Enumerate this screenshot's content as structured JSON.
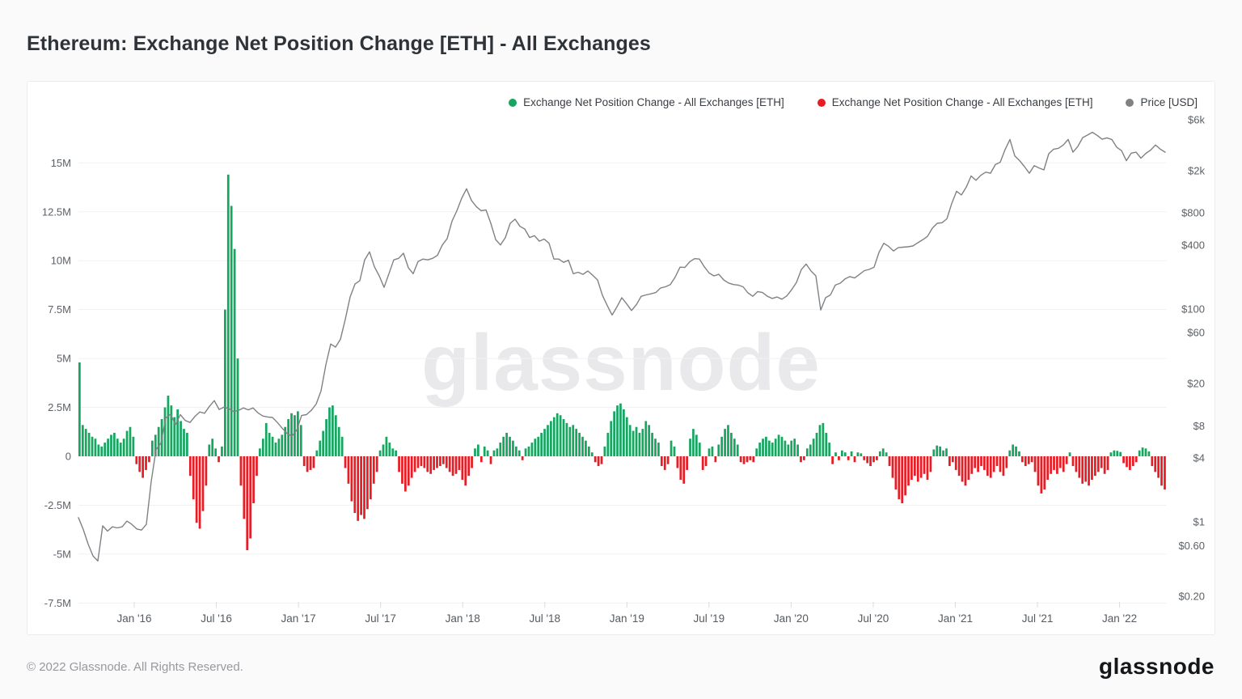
{
  "page": {
    "title": "Ethereum: Exchange Net Position Change [ETH] - All Exchanges",
    "watermark": "glassnode"
  },
  "legend": {
    "items": [
      {
        "label": "Exchange Net Position Change - All Exchanges [ETH]",
        "color": "#16A660",
        "marker": "dot"
      },
      {
        "label": "Exchange Net Position Change - All Exchanges [ETH]",
        "color": "#E71D25",
        "marker": "dot"
      },
      {
        "label": "Price [USD]",
        "color": "#7F8285",
        "marker": "dot"
      }
    ]
  },
  "footer": {
    "copyright": "© 2022 Glassnode. All Rights Reserved.",
    "logo": "glassnode"
  },
  "chart_data": {
    "type": "composite",
    "title": "Ethereum: Exchange Net Position Change [ETH] - All Exchanges",
    "grid": "horizontal",
    "legend_position": "top-right",
    "x_ticks": [
      "Jan '16",
      "Jul '16",
      "Jan '17",
      "Jul '17",
      "Jan '18",
      "Jul '18",
      "Jan '19",
      "Jul '19",
      "Jan '20",
      "Jul '20",
      "Jan '21",
      "Jul '21",
      "Jan '22"
    ],
    "x_range": [
      "Aug 2015",
      "May 2022"
    ],
    "y_left": {
      "title": "Exchange Net Position Change [ETH]",
      "unit": "million ETH",
      "ticks": [
        15,
        12.5,
        10,
        7.5,
        5,
        2.5,
        0,
        -2.5,
        -5,
        -7.5
      ],
      "tick_labels": [
        "15M",
        "12.5M",
        "10M",
        "7.5M",
        "5M",
        "2.5M",
        "0",
        "-2.5M",
        "-5M",
        "-7.5M"
      ]
    },
    "y_right": {
      "title": "Price [USD]",
      "scale": "log",
      "ticks": [
        6000,
        2000,
        800,
        400,
        100,
        60,
        20,
        8,
        4,
        1,
        0.6,
        0.2
      ],
      "tick_labels": [
        "$6k",
        "$2k",
        "$800",
        "$400",
        "$100",
        "$60",
        "$20",
        "$8",
        "$4",
        "$1",
        "$0.60",
        "$0.20"
      ]
    },
    "series": [
      {
        "name": "Exchange Net Position Change - All Exchanges [ETH]",
        "type": "bar",
        "axis": "left",
        "unit": "million ETH",
        "interval": "weekly, Aug 2015 to May 2022, evenly spaced",
        "color_positive": "#16A660",
        "color_negative": "#E71D25",
        "values": [
          4.8,
          1.6,
          1.4,
          1.2,
          1.0,
          0.9,
          0.6,
          0.5,
          0.7,
          0.9,
          1.1,
          1.2,
          0.9,
          0.7,
          0.9,
          1.3,
          1.5,
          1.0,
          -0.4,
          -0.8,
          -1.1,
          -0.7,
          -0.3,
          0.8,
          1.1,
          1.5,
          1.9,
          2.5,
          3.1,
          2.6,
          2.0,
          2.4,
          1.8,
          1.4,
          1.2,
          -1.0,
          -2.2,
          -3.4,
          -3.7,
          -2.8,
          -1.5,
          0.6,
          0.9,
          0.4,
          -0.3,
          0.5,
          7.5,
          14.4,
          12.8,
          10.6,
          5.0,
          -1.5,
          -3.2,
          -4.8,
          -4.2,
          -2.4,
          -1.0,
          0.4,
          0.9,
          1.7,
          1.2,
          1.0,
          0.7,
          0.9,
          1.1,
          1.5,
          1.9,
          2.2,
          2.1,
          2.3,
          1.6,
          -0.5,
          -0.8,
          -0.7,
          -0.6,
          0.3,
          0.8,
          1.3,
          1.9,
          2.5,
          2.6,
          2.1,
          1.5,
          1.0,
          -0.6,
          -1.4,
          -2.3,
          -2.9,
          -3.3,
          -3.0,
          -3.2,
          -2.7,
          -2.2,
          -1.4,
          -0.8,
          0.3,
          0.6,
          1.0,
          0.7,
          0.4,
          0.3,
          -0.8,
          -1.4,
          -1.8,
          -1.5,
          -1.1,
          -0.8,
          -0.6,
          -0.5,
          -0.6,
          -0.8,
          -0.9,
          -0.7,
          -0.6,
          -0.5,
          -0.4,
          -0.6,
          -0.8,
          -1.0,
          -0.9,
          -0.7,
          -1.2,
          -1.5,
          -1.0,
          -0.6,
          0.4,
          0.6,
          -0.3,
          0.5,
          0.3,
          -0.4,
          0.3,
          0.4,
          0.7,
          1.0,
          1.2,
          1.0,
          0.8,
          0.5,
          0.3,
          -0.2,
          0.4,
          0.5,
          0.7,
          0.9,
          1.0,
          1.2,
          1.4,
          1.6,
          1.8,
          2.0,
          2.2,
          2.1,
          1.9,
          1.7,
          1.5,
          1.6,
          1.4,
          1.2,
          1.0,
          0.8,
          0.5,
          0.2,
          -0.3,
          -0.5,
          -0.4,
          0.5,
          1.2,
          1.8,
          2.3,
          2.6,
          2.7,
          2.4,
          2.0,
          1.6,
          1.3,
          1.5,
          1.2,
          1.4,
          1.8,
          1.6,
          1.2,
          0.9,
          0.7,
          -0.5,
          -0.7,
          -0.4,
          0.8,
          0.5,
          -0.6,
          -1.2,
          -1.4,
          -0.7,
          0.9,
          1.4,
          1.1,
          0.7,
          -0.7,
          -0.5,
          0.4,
          0.5,
          -0.3,
          0.6,
          1.0,
          1.4,
          1.6,
          1.2,
          0.9,
          0.6,
          -0.3,
          -0.4,
          -0.3,
          -0.2,
          -0.3,
          0.4,
          0.7,
          0.9,
          1.0,
          0.8,
          0.7,
          0.9,
          1.1,
          1.0,
          0.8,
          0.6,
          0.8,
          0.9,
          0.6,
          -0.3,
          -0.2,
          0.4,
          0.6,
          0.9,
          1.2,
          1.6,
          1.7,
          1.2,
          0.7,
          -0.4,
          0.2,
          -0.2,
          0.3,
          0.2,
          -0.2,
          0.25,
          -0.3,
          0.2,
          0.15,
          -0.2,
          -0.35,
          -0.5,
          -0.3,
          -0.2,
          0.25,
          0.4,
          0.2,
          -0.5,
          -1.1,
          -1.7,
          -2.2,
          -2.4,
          -2.0,
          -1.5,
          -1.2,
          -1.0,
          -1.3,
          -1.1,
          -0.9,
          -1.2,
          -0.8,
          0.35,
          0.55,
          0.5,
          0.3,
          0.4,
          -0.5,
          -0.3,
          -0.7,
          -1.0,
          -1.3,
          -1.5,
          -1.2,
          -0.9,
          -0.6,
          -0.8,
          -0.5,
          -0.7,
          -1.0,
          -1.1,
          -0.8,
          -0.5,
          -0.8,
          -1.0,
          -0.6,
          0.3,
          0.6,
          0.5,
          0.25,
          -0.3,
          -0.5,
          -0.4,
          -0.3,
          -0.8,
          -1.5,
          -1.9,
          -1.7,
          -1.2,
          -0.9,
          -0.7,
          -0.9,
          -0.6,
          -0.8,
          -0.4,
          0.2,
          -0.5,
          -0.8,
          -1.1,
          -1.4,
          -1.3,
          -1.5,
          -1.2,
          -1.0,
          -0.8,
          -0.6,
          -0.9,
          -0.7,
          0.2,
          0.3,
          0.28,
          0.22,
          -0.35,
          -0.55,
          -0.7,
          -0.5,
          -0.3,
          0.3,
          0.45,
          0.4,
          0.25,
          -0.5,
          -0.8,
          -1.1,
          -1.5,
          -1.7
        ]
      },
      {
        "name": "Price [USD]",
        "type": "line",
        "axis": "right",
        "unit": "USD",
        "interval": "evenly spaced samples, Aug 2015 to May 2022",
        "color": "#7F8285",
        "values": [
          1.1,
          0.85,
          0.62,
          0.48,
          0.43,
          0.92,
          0.82,
          0.9,
          0.88,
          0.9,
          1.02,
          0.95,
          0.86,
          0.84,
          0.95,
          2.4,
          4.8,
          5.5,
          9.5,
          10.3,
          8.2,
          10.2,
          9,
          8.6,
          9.8,
          10.8,
          10.5,
          12.2,
          13.8,
          11.4,
          12,
          11.6,
          10.9,
          11.2,
          11.8,
          11.3,
          11.8,
          10.6,
          9.9,
          9.7,
          9.6,
          8.6,
          7.6,
          6.8,
          6.4,
          7.3,
          10,
          10.2,
          11.2,
          12.8,
          17,
          30,
          47,
          44,
          52,
          80,
          130,
          172,
          185,
          290,
          345,
          250,
          205,
          160,
          215,
          290,
          300,
          335,
          245,
          215,
          280,
          295,
          290,
          300,
          320,
          400,
          460,
          670,
          840,
          1100,
          1350,
          1050,
          920,
          840,
          855,
          640,
          450,
          400,
          470,
          640,
          700,
          600,
          565,
          470,
          490,
          435,
          455,
          415,
          295,
          295,
          275,
          288,
          215,
          222,
          212,
          228,
          208,
          188,
          135,
          108,
          88,
          105,
          128,
          112,
          97,
          110,
          132,
          136,
          139,
          143,
          158,
          162,
          170,
          200,
          248,
          246,
          278,
          298,
          295,
          250,
          218,
          205,
          212,
          188,
          176,
          170,
          168,
          162,
          142,
          132,
          146,
          143,
          132,
          126,
          130,
          124,
          133,
          152,
          178,
          235,
          265,
          228,
          205,
          98,
          128,
          136,
          168,
          175,
          192,
          202,
          196,
          212,
          230,
          236,
          248,
          340,
          415,
          388,
          352,
          378,
          382,
          385,
          392,
          420,
          448,
          482,
          575,
          640,
          648,
          705,
          980,
          1280,
          1180,
          1400,
          1780,
          1620,
          1805,
          1935,
          1890,
          2280,
          2400,
          3150,
          3920,
          2750,
          2480,
          2180,
          1890,
          2230,
          2120,
          2030,
          2880,
          3180,
          3240,
          3480,
          3920,
          2980,
          3380,
          4080,
          4320,
          4580,
          4280,
          3940,
          4060,
          3920,
          3320,
          3080,
          2480,
          2920,
          2980,
          2620,
          2900,
          3120,
          3480,
          3180,
          2980
        ]
      }
    ]
  }
}
